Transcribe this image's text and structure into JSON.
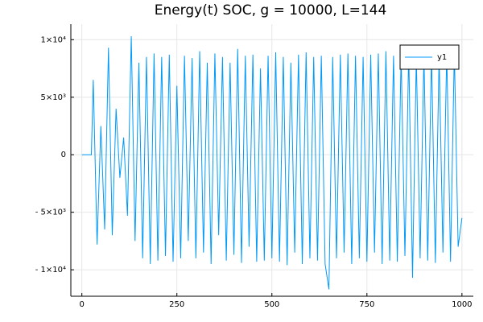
{
  "chart_data": {
    "type": "line",
    "title": "Energy(t) SOC, g = 10000, L=144",
    "x": [
      0,
      10,
      20,
      25,
      30,
      40,
      50,
      60,
      70,
      80,
      90,
      100,
      110,
      120,
      130,
      140,
      150,
      160,
      170,
      180,
      190,
      200,
      210,
      220,
      230,
      240,
      250,
      260,
      270,
      280,
      290,
      300,
      310,
      320,
      330,
      340,
      350,
      360,
      370,
      380,
      390,
      400,
      410,
      420,
      430,
      440,
      450,
      460,
      470,
      480,
      490,
      500,
      510,
      520,
      530,
      540,
      550,
      560,
      570,
      580,
      590,
      600,
      610,
      620,
      630,
      640,
      650,
      660,
      670,
      680,
      690,
      700,
      710,
      720,
      730,
      740,
      750,
      760,
      770,
      780,
      790,
      800,
      810,
      820,
      830,
      840,
      850,
      860,
      870,
      880,
      890,
      900,
      910,
      920,
      930,
      940,
      950,
      960,
      970,
      980,
      990,
      1000
    ],
    "series": [
      {
        "name": "y1",
        "color": "#009af9",
        "values": [
          0,
          0,
          0,
          0,
          6500,
          -7800,
          2500,
          -6500,
          9300,
          -7000,
          4000,
          -2000,
          1500,
          -5300,
          10300,
          -7500,
          8000,
          -9000,
          8500,
          -9500,
          8800,
          -9200,
          8500,
          -8800,
          8700,
          -9300,
          6000,
          -9000,
          8600,
          -7500,
          8400,
          -9000,
          9000,
          -8500,
          8000,
          -9500,
          8800,
          -7000,
          8500,
          -9200,
          8000,
          -8700,
          9200,
          -9400,
          8600,
          -8000,
          8700,
          -9300,
          7500,
          -9200,
          8600,
          -9000,
          8900,
          -9300,
          8500,
          -9600,
          8000,
          -8500,
          8700,
          -9500,
          8900,
          -9000,
          8500,
          -9200,
          8600,
          -9500,
          -11700,
          8500,
          -9000,
          8700,
          -8500,
          8800,
          -9500,
          8600,
          -9000,
          8500,
          -9300,
          8700,
          -8500,
          8800,
          -9500,
          9000,
          -9200,
          8600,
          -9300,
          8700,
          -8800,
          8900,
          -10700,
          8500,
          -9000,
          8700,
          -9200,
          8800,
          -9400,
          8600,
          -8500,
          8900,
          -9300,
          9000,
          -8000,
          -5500
        ]
      }
    ],
    "xlim": [
      -29,
      1030
    ],
    "xticks": [
      0,
      250,
      500,
      750,
      1000
    ],
    "ylim": [
      -12300,
      11350
    ],
    "yticks": [
      {
        "value": -10000,
        "label": "- 1×10⁴"
      },
      {
        "value": -5000,
        "label": "- 5×10³"
      },
      0,
      {
        "value": 5000,
        "label": "5×10³"
      },
      {
        "value": 10000,
        "label": "1×10⁴"
      }
    ],
    "grid": true,
    "legend": "top-right"
  }
}
